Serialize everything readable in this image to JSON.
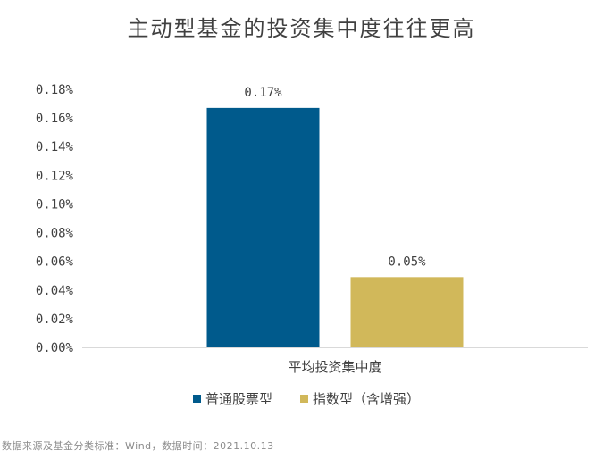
{
  "chart_data": {
    "type": "bar",
    "title": "主动型基金的投资集中度往往更高",
    "categories": [
      "平均投资集中度"
    ],
    "series": [
      {
        "name": "普通股票型",
        "values": [
          0.167
        ],
        "color": "#005a8c",
        "data_label": "0.17%"
      },
      {
        "name": "指数型（含增强）",
        "values": [
          0.049
        ],
        "color": "#d1b85a",
        "data_label": "0.05%"
      }
    ],
    "y_ticks": [
      "0.00%",
      "0.02%",
      "0.04%",
      "0.06%",
      "0.08%",
      "0.10%",
      "0.12%",
      "0.14%",
      "0.16%",
      "0.18%"
    ],
    "ylim": [
      0,
      0.18
    ],
    "legend_position": "bottom",
    "grid": false
  },
  "footer": {
    "source": "数据来源及基金分类标准：Wind，数据时间：2021.10.13"
  }
}
